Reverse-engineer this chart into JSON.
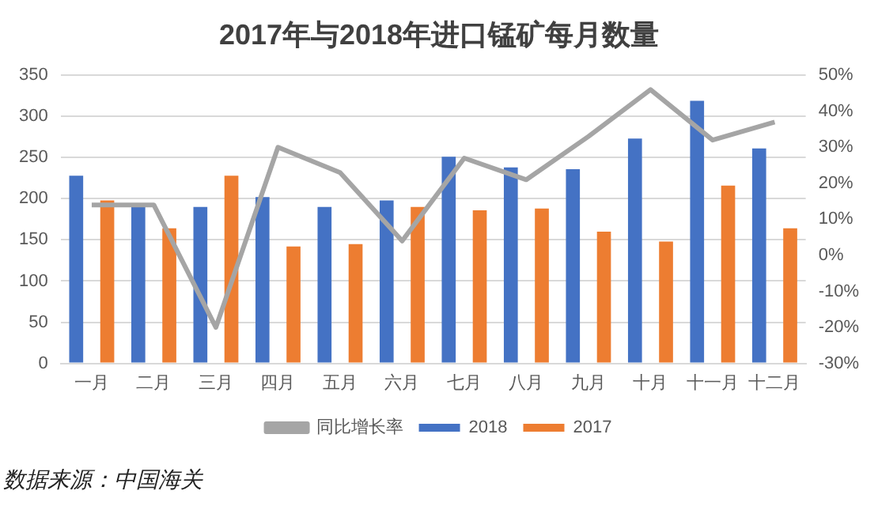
{
  "chart_data": {
    "type": "bar",
    "title": "2017年与2018年进口锰矿每月数量",
    "categories": [
      "一月",
      "二月",
      "三月",
      "四月",
      "五月",
      "六月",
      "七月",
      "八月",
      "九月",
      "十月",
      "十一月",
      "十二月"
    ],
    "series": [
      {
        "name": "2018",
        "color": "#4472c4",
        "values": [
          228,
          190,
          190,
          202,
          190,
          198,
          251,
          238,
          236,
          273,
          319,
          261
        ]
      },
      {
        "name": "2017",
        "color": "#ed7d31",
        "values": [
          198,
          164,
          228,
          142,
          145,
          190,
          186,
          188,
          160,
          148,
          216,
          164
        ]
      },
      {
        "name": "同比增长率",
        "type": "line",
        "axis": "y2",
        "color": "#a5a5a5",
        "values": [
          14,
          14,
          -20,
          30,
          23,
          4,
          27,
          21,
          33,
          46,
          32,
          37
        ]
      }
    ],
    "ylim": [
      0,
      350
    ],
    "yticks": [
      0,
      50,
      100,
      150,
      200,
      250,
      300,
      350
    ],
    "y2lim": [
      -30,
      50
    ],
    "y2ticks": [
      {
        "value": -30,
        "label": "-30%"
      },
      {
        "value": -20,
        "label": "-20%"
      },
      {
        "value": -10,
        "label": "-10%"
      },
      {
        "value": 0,
        "label": "0%"
      },
      {
        "value": 10,
        "label": "10%"
      },
      {
        "value": 20,
        "label": "20%"
      },
      {
        "value": 30,
        "label": "30%"
      },
      {
        "value": 40,
        "label": "40%"
      },
      {
        "value": 50,
        "label": "50%"
      }
    ],
    "grid": "y",
    "legend": "bottom",
    "marker": "none",
    "line_style": "solid",
    "annotations": [
      "数据来源：中国海关"
    ]
  }
}
